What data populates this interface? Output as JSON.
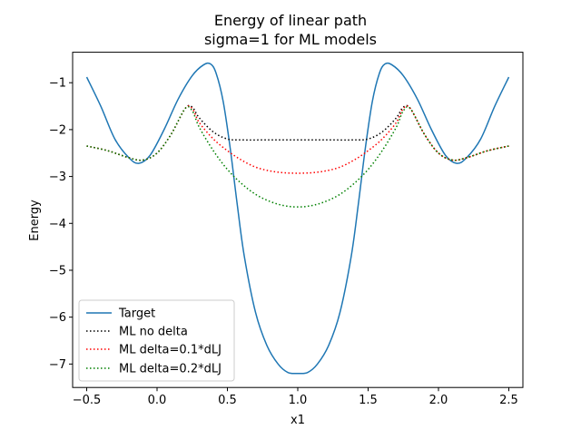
{
  "chart_data": {
    "type": "line",
    "title": "Energy of linear path",
    "subtitle": "sigma=1 for ML models",
    "xlabel": "x1",
    "ylabel": "Energy",
    "xlim": [
      -0.6,
      2.6
    ],
    "ylim": [
      -7.5,
      -0.35
    ],
    "xticks": [
      -0.5,
      0.0,
      0.5,
      1.0,
      1.5,
      2.0,
      2.5
    ],
    "xtick_labels": [
      "−0.5",
      "0.0",
      "0.5",
      "1.0",
      "1.5",
      "2.0",
      "2.5"
    ],
    "yticks": [
      -7,
      -6,
      -5,
      -4,
      -3,
      -2,
      -1
    ],
    "ytick_labels": [
      "−7",
      "−6",
      "−5",
      "−4",
      "−3",
      "−2",
      "−1"
    ],
    "grid": false,
    "legend_position": "lower-left",
    "series": [
      {
        "name": "Target",
        "color": "#1f77b4",
        "style": "solid",
        "x": [
          -0.5,
          -0.4,
          -0.3,
          -0.2,
          -0.13,
          -0.05,
          0.05,
          0.15,
          0.25,
          0.33,
          0.38,
          0.42,
          0.47,
          0.52,
          0.57,
          0.62,
          0.7,
          0.78,
          0.86,
          0.93,
          1.0,
          1.07,
          1.14,
          1.22,
          1.3,
          1.38,
          1.43,
          1.48,
          1.53,
          1.58,
          1.62,
          1.67,
          1.75,
          1.85,
          1.95,
          2.05,
          2.13,
          2.2,
          2.3,
          2.4,
          2.5
        ],
        "y": [
          -0.88,
          -1.5,
          -2.2,
          -2.6,
          -2.72,
          -2.55,
          -2.0,
          -1.35,
          -0.85,
          -0.62,
          -0.6,
          -0.8,
          -1.4,
          -2.4,
          -3.6,
          -4.7,
          -5.9,
          -6.6,
          -7.0,
          -7.18,
          -7.2,
          -7.18,
          -7.0,
          -6.6,
          -5.9,
          -4.7,
          -3.6,
          -2.4,
          -1.4,
          -0.8,
          -0.6,
          -0.62,
          -0.85,
          -1.35,
          -2.0,
          -2.55,
          -2.72,
          -2.6,
          -2.2,
          -1.5,
          -0.88
        ]
      },
      {
        "name": "ML no delta",
        "color": "#000000",
        "style": "dotted",
        "x": [
          -0.5,
          -0.35,
          -0.2,
          -0.1,
          0.0,
          0.1,
          0.2,
          0.25,
          0.3,
          0.4,
          0.5,
          0.6,
          0.8,
          1.0,
          1.2,
          1.4,
          1.5,
          1.6,
          1.7,
          1.75,
          1.8,
          1.9,
          2.0,
          2.1,
          2.2,
          2.35,
          2.5
        ],
        "y": [
          -2.35,
          -2.45,
          -2.6,
          -2.65,
          -2.5,
          -2.1,
          -1.55,
          -1.52,
          -1.75,
          -2.05,
          -2.2,
          -2.22,
          -2.22,
          -2.22,
          -2.22,
          -2.22,
          -2.2,
          -2.05,
          -1.75,
          -1.52,
          -1.55,
          -2.1,
          -2.5,
          -2.65,
          -2.6,
          -2.45,
          -2.35
        ]
      },
      {
        "name": "ML delta=0.1*dLJ",
        "color": "#ff0000",
        "style": "dotted",
        "x": [
          -0.5,
          -0.35,
          -0.2,
          -0.1,
          0.0,
          0.1,
          0.2,
          0.25,
          0.3,
          0.4,
          0.5,
          0.6,
          0.7,
          0.8,
          0.9,
          1.0,
          1.1,
          1.2,
          1.3,
          1.4,
          1.5,
          1.6,
          1.7,
          1.75,
          1.8,
          1.9,
          2.0,
          2.1,
          2.2,
          2.35,
          2.5
        ],
        "y": [
          -2.35,
          -2.45,
          -2.6,
          -2.65,
          -2.5,
          -2.1,
          -1.55,
          -1.55,
          -1.85,
          -2.2,
          -2.45,
          -2.65,
          -2.8,
          -2.88,
          -2.92,
          -2.93,
          -2.92,
          -2.88,
          -2.8,
          -2.65,
          -2.45,
          -2.2,
          -1.85,
          -1.55,
          -1.55,
          -2.1,
          -2.5,
          -2.65,
          -2.6,
          -2.45,
          -2.35
        ]
      },
      {
        "name": "ML delta=0.2*dLJ",
        "color": "#008000",
        "style": "dotted",
        "x": [
          -0.5,
          -0.35,
          -0.2,
          -0.1,
          0.0,
          0.1,
          0.2,
          0.25,
          0.3,
          0.4,
          0.5,
          0.6,
          0.7,
          0.8,
          0.9,
          1.0,
          1.1,
          1.2,
          1.3,
          1.4,
          1.5,
          1.6,
          1.7,
          1.75,
          1.8,
          1.9,
          2.0,
          2.1,
          2.2,
          2.35,
          2.5
        ],
        "y": [
          -2.35,
          -2.45,
          -2.6,
          -2.65,
          -2.5,
          -2.1,
          -1.55,
          -1.6,
          -1.95,
          -2.45,
          -2.85,
          -3.15,
          -3.38,
          -3.53,
          -3.62,
          -3.65,
          -3.62,
          -3.53,
          -3.38,
          -3.15,
          -2.85,
          -2.45,
          -1.95,
          -1.6,
          -1.55,
          -2.1,
          -2.5,
          -2.65,
          -2.6,
          -2.45,
          -2.35
        ]
      }
    ]
  }
}
